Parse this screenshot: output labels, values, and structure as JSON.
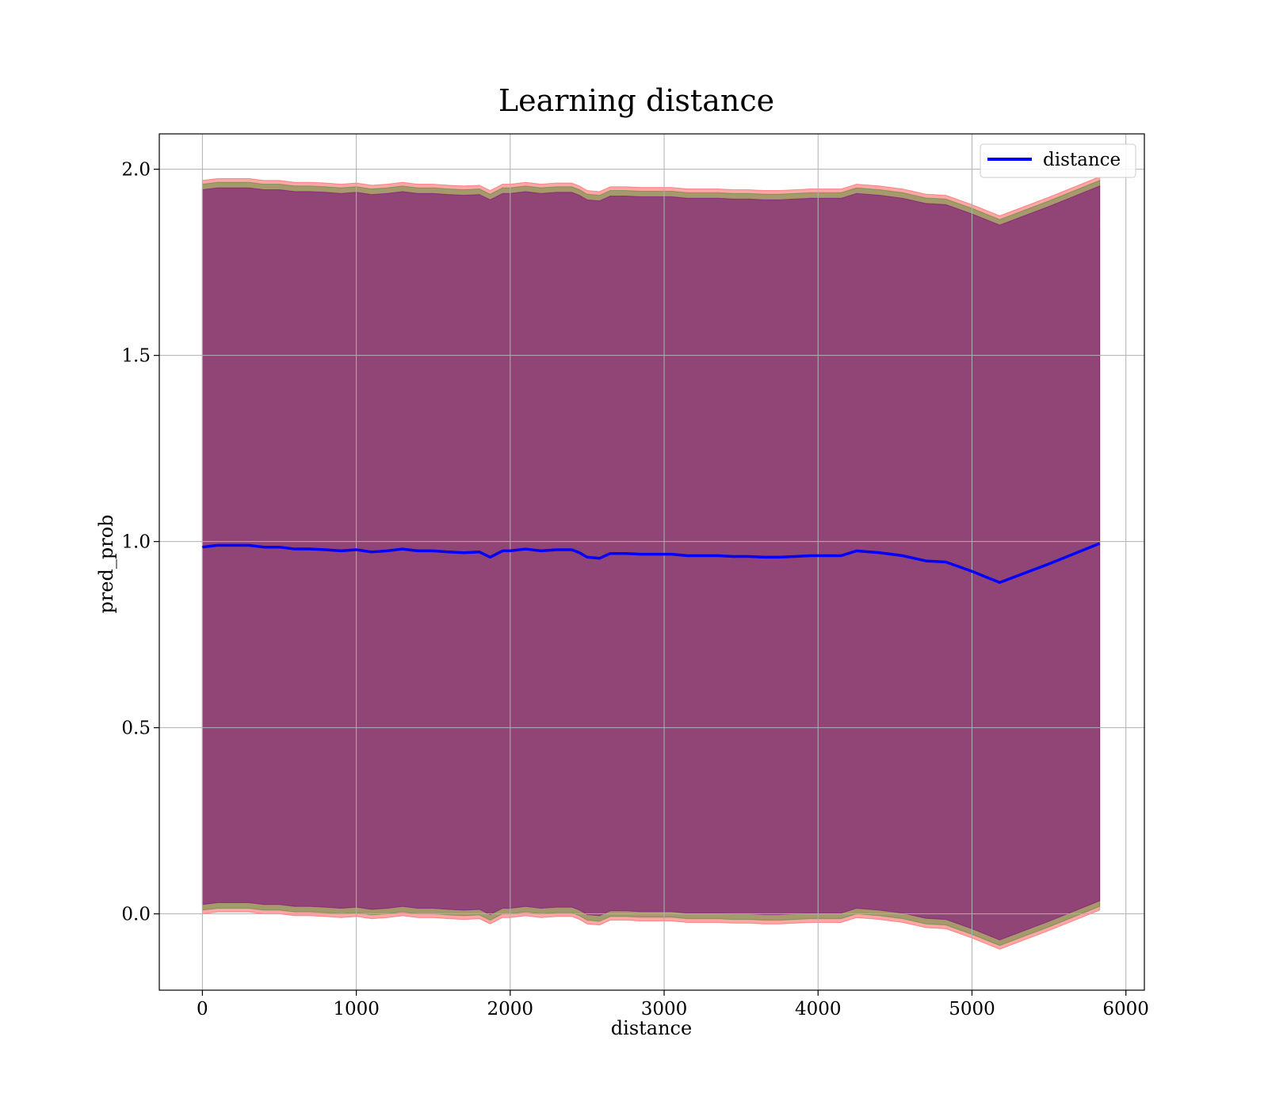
{
  "chart_data": {
    "type": "line",
    "title": "Learning distance",
    "xlabel": "distance",
    "ylabel": "pred_prob",
    "xlim": [
      -280,
      6120
    ],
    "ylim": [
      -0.205,
      2.095
    ],
    "xticks": [
      0,
      1000,
      2000,
      3000,
      4000,
      5000,
      6000
    ],
    "yticks": [
      0.0,
      0.5,
      1.0,
      1.5,
      2.0
    ],
    "xtick_labels": [
      "0",
      "1000",
      "2000",
      "3000",
      "4000",
      "5000",
      "6000"
    ],
    "ytick_labels": [
      "0.0",
      "0.5",
      "1.0",
      "1.5",
      "2.0"
    ],
    "grid": true,
    "legend": {
      "position": "top-right",
      "entries": [
        "distance"
      ]
    },
    "series": [
      {
        "name": "distance",
        "color": "#0000ff",
        "x": [
          0,
          100,
          200,
          300,
          400,
          500,
          600,
          700,
          800,
          900,
          1000,
          1100,
          1200,
          1300,
          1400,
          1500,
          1600,
          1700,
          1800,
          1870,
          1950,
          2000,
          2100,
          2200,
          2300,
          2400,
          2450,
          2500,
          2580,
          2650,
          2750,
          2850,
          2950,
          3050,
          3150,
          3250,
          3350,
          3450,
          3550,
          3650,
          3750,
          3850,
          3950,
          4050,
          4150,
          4250,
          4400,
          4550,
          4700,
          4830,
          5000,
          5180,
          5500,
          5830
        ],
        "y": [
          0.985,
          0.99,
          0.99,
          0.99,
          0.985,
          0.985,
          0.98,
          0.98,
          0.978,
          0.975,
          0.978,
          0.972,
          0.975,
          0.98,
          0.975,
          0.975,
          0.972,
          0.97,
          0.972,
          0.958,
          0.975,
          0.975,
          0.98,
          0.975,
          0.978,
          0.978,
          0.97,
          0.958,
          0.955,
          0.968,
          0.968,
          0.966,
          0.966,
          0.966,
          0.962,
          0.962,
          0.962,
          0.96,
          0.96,
          0.958,
          0.958,
          0.96,
          0.962,
          0.962,
          0.962,
          0.975,
          0.97,
          0.962,
          0.948,
          0.945,
          0.92,
          0.89,
          0.94,
          0.995
        ]
      }
    ],
    "bands": [
      {
        "color": "#ff0000",
        "alpha": 0.35,
        "offset": [
          -0.985,
          0.985
        ]
      },
      {
        "color": "#008000",
        "alpha": 0.35,
        "offset": [
          -0.975,
          0.975
        ]
      },
      {
        "color": "#800080",
        "alpha": 0.55,
        "offset": [
          -0.96,
          0.96
        ]
      }
    ]
  }
}
